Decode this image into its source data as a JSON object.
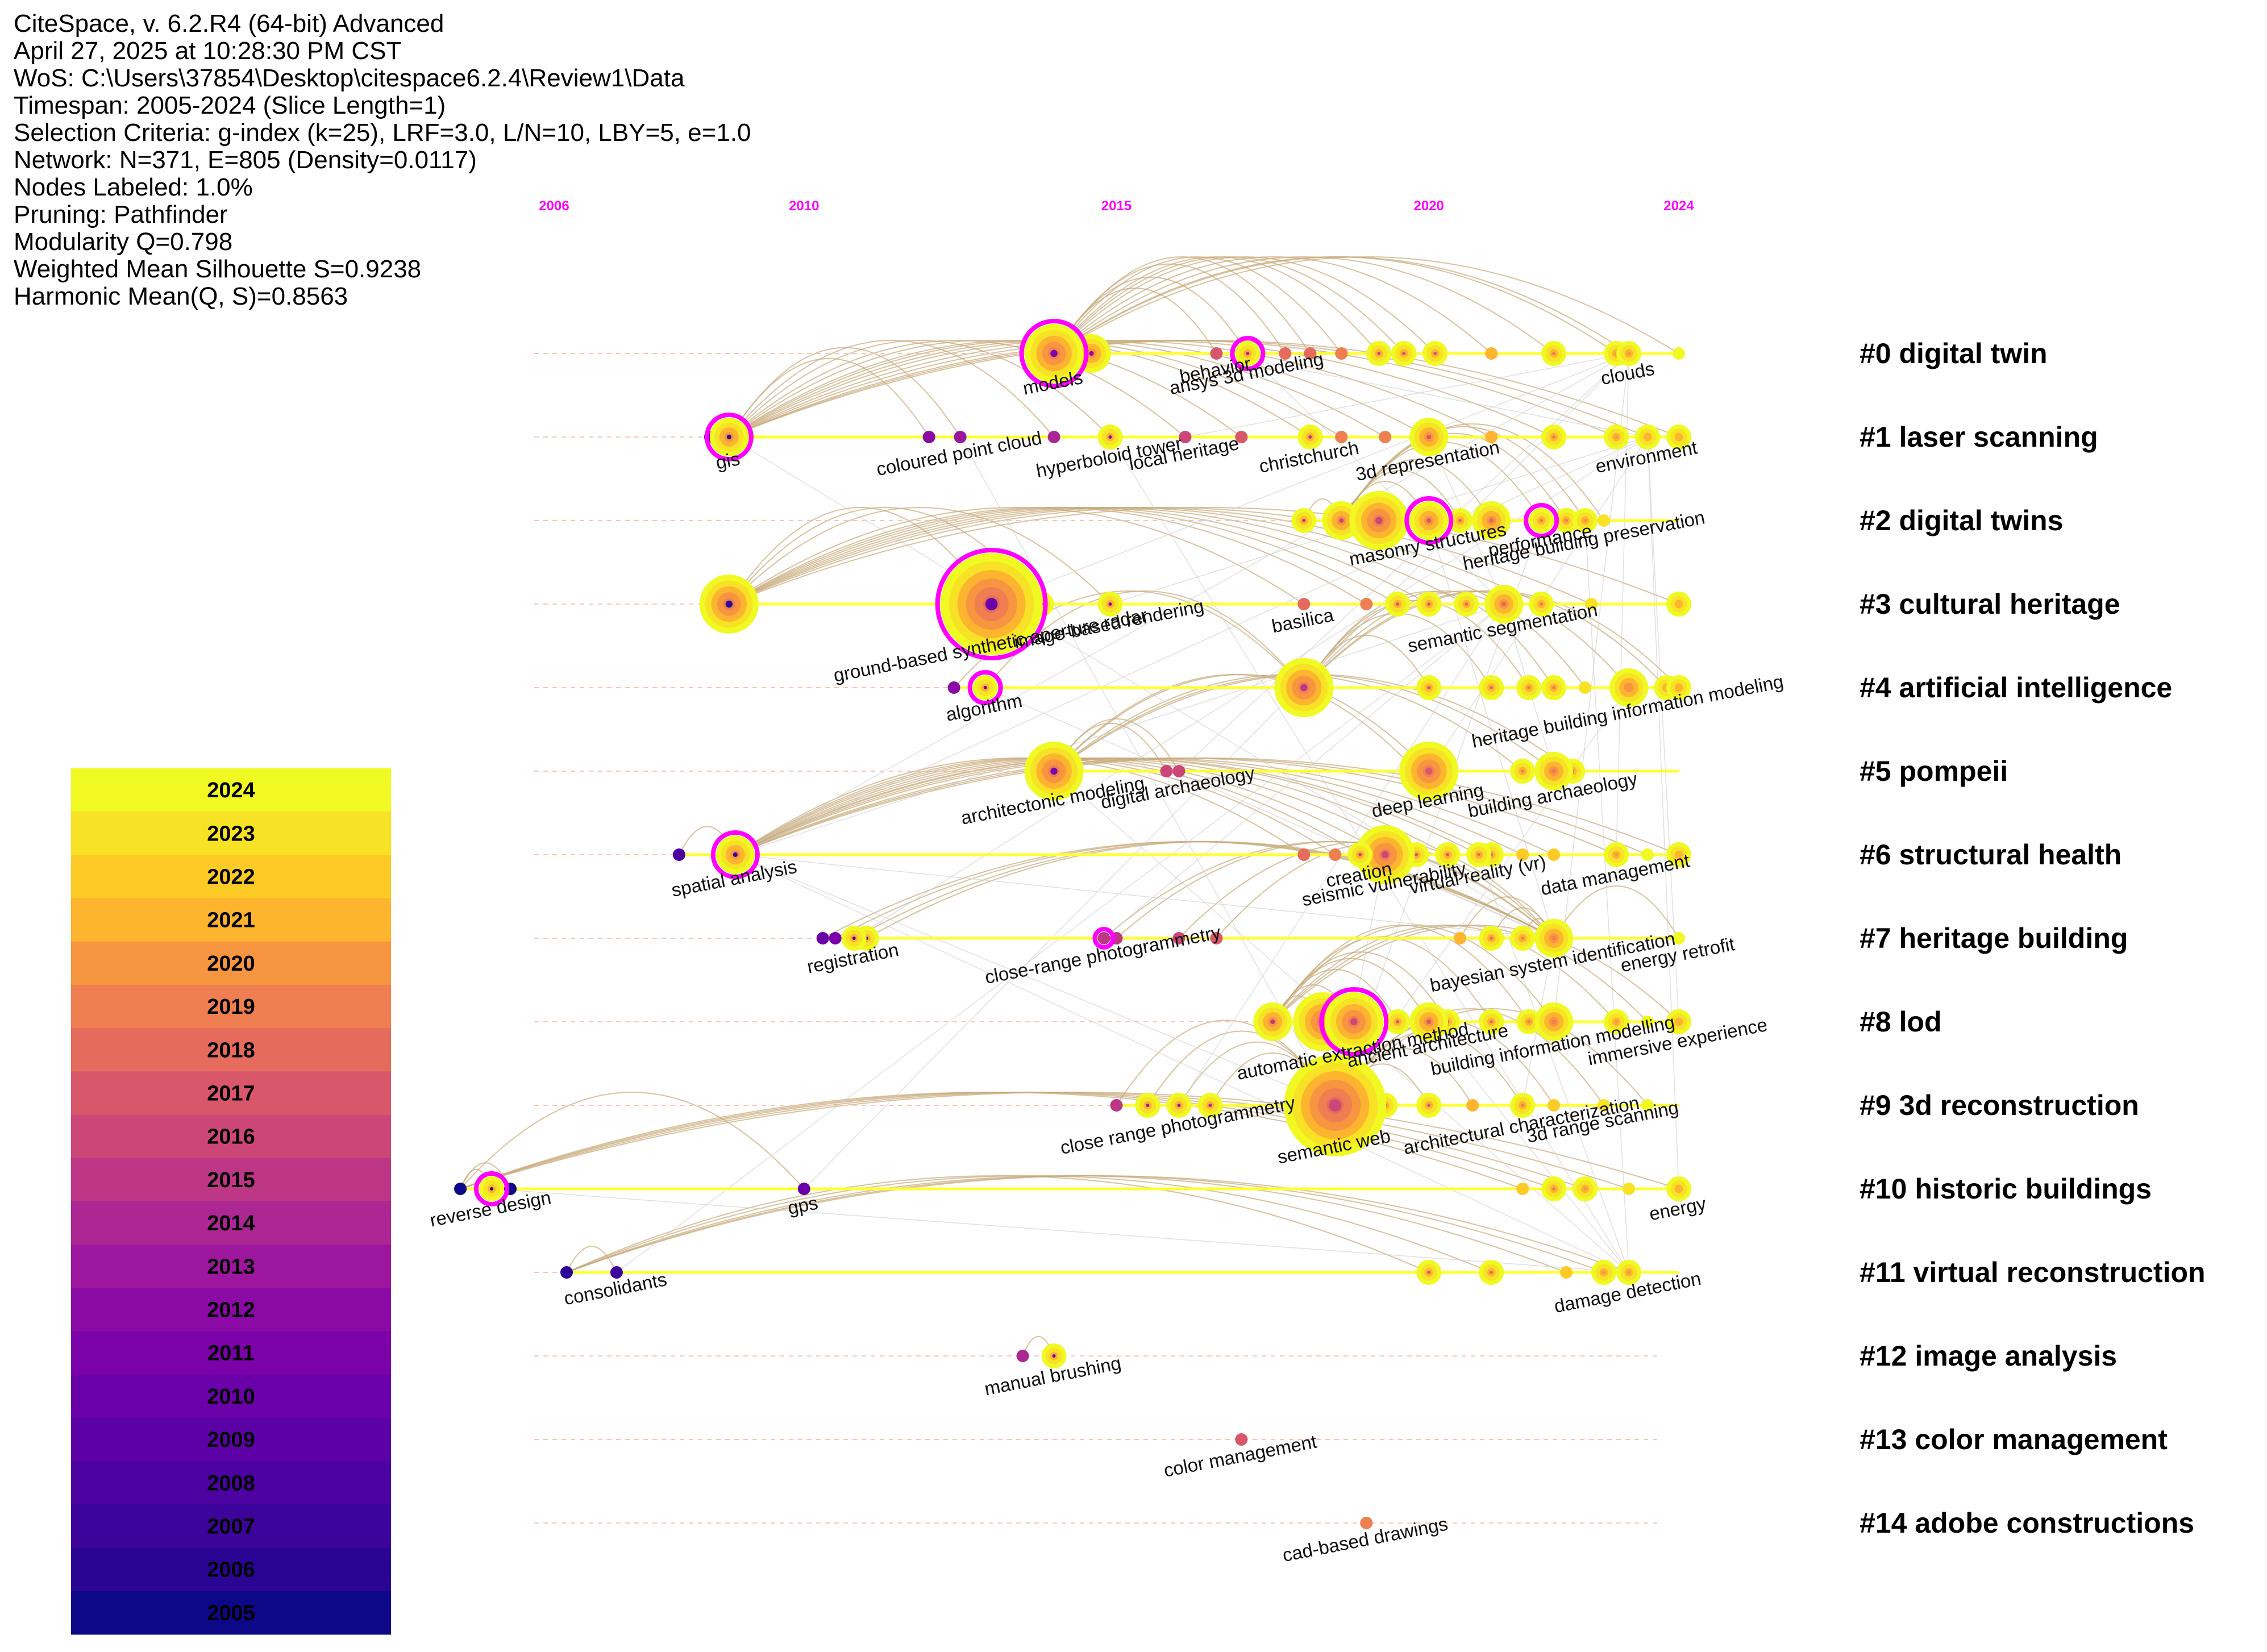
{
  "info": {
    "lines": [
      "CiteSpace, v. 6.2.R4 (64-bit) Advanced",
      "April 27, 2025 at 10:28:30 PM CST",
      "WoS: C:\\Users\\37854\\Desktop\\citespace6.2.4\\Review1\\Data",
      "Timespan: 2005-2024 (Slice Length=1)",
      "Selection Criteria: g-index (k=25), LRF=3.0, L/N=10, LBY=5, e=1.0",
      "Network: N=371, E=805 (Density=0.0117)",
      "Nodes Labeled: 1.0%",
      "Pruning: Pathfinder",
      "Modularity Q=0.798",
      "Weighted Mean Silhouette S=0.9238",
      "Harmonic Mean(Q, S)=0.8563"
    ]
  },
  "chart_data": {
    "type": "scatter",
    "subtype": "timeline",
    "title": "",
    "x_axis_ticks": [
      "2006",
      "2010",
      "2015",
      "2020",
      "2024"
    ],
    "tick_years": [
      2006,
      2010,
      2015,
      2020,
      2024
    ],
    "xlim": [
      2005,
      2024
    ],
    "colors": {
      "tick": "#ff00ff",
      "timeline": "#ffff33",
      "ring": "#ff00ff",
      "edge": "#c8a878",
      "grid": "#cccccc"
    },
    "legend": {
      "placement": "bottom-left",
      "years": [
        {
          "year": "2024",
          "color": "#f0f921"
        },
        {
          "year": "2023",
          "color": "#f7e225"
        },
        {
          "year": "2022",
          "color": "#fdca26"
        },
        {
          "year": "2021",
          "color": "#fdb42f"
        },
        {
          "year": "2020",
          "color": "#f89540"
        },
        {
          "year": "2019",
          "color": "#ef7e50"
        },
        {
          "year": "2018",
          "color": "#e56b5d"
        },
        {
          "year": "2017",
          "color": "#d8576b"
        },
        {
          "year": "2016",
          "color": "#cc4778"
        },
        {
          "year": "2015",
          "color": "#bd3786"
        },
        {
          "year": "2014",
          "color": "#ac2694"
        },
        {
          "year": "2013",
          "color": "#9c179e"
        },
        {
          "year": "2012",
          "color": "#8b0aa5"
        },
        {
          "year": "2011",
          "color": "#7a02a8"
        },
        {
          "year": "2010",
          "color": "#6a00a8"
        },
        {
          "year": "2009",
          "color": "#5c01a6"
        },
        {
          "year": "2008",
          "color": "#4c02a1"
        },
        {
          "year": "2007",
          "color": "#3c049b"
        },
        {
          "year": "2006",
          "color": "#2a0593"
        },
        {
          "year": "2005",
          "color": "#0d0887"
        }
      ]
    },
    "clusters": [
      {
        "id": 0,
        "label": "#0 digital twin",
        "start": 2006,
        "end": 2024
      },
      {
        "id": 1,
        "label": "#1 laser scanning",
        "start": 2006,
        "end": 2024
      },
      {
        "id": 2,
        "label": "#2 digital twins",
        "start": 2006,
        "end": 2024
      },
      {
        "id": 3,
        "label": "#3 cultural heritage",
        "start": 2006,
        "end": 2024
      },
      {
        "id": 4,
        "label": "#4 artificial intelligence",
        "start": 2006,
        "end": 2024
      },
      {
        "id": 5,
        "label": "#5 pompeii",
        "start": 2006,
        "end": 2024
      },
      {
        "id": 6,
        "label": "#6 structural health",
        "start": 2006,
        "end": 2024
      },
      {
        "id": 7,
        "label": "#7 heritage building",
        "start": 2006,
        "end": 2024
      },
      {
        "id": 8,
        "label": "#8 lod",
        "start": 2006,
        "end": 2024
      },
      {
        "id": 9,
        "label": "#9 3d reconstruction",
        "start": 2006,
        "end": 2024
      },
      {
        "id": 10,
        "label": "#10 historic buildings",
        "start": 2006,
        "end": 2024
      },
      {
        "id": 11,
        "label": "#11 virtual reconstruction",
        "start": 2006,
        "end": 2024
      },
      {
        "id": 12,
        "label": "#12 image analysis",
        "start": 2006,
        "end": 2024
      },
      {
        "id": 13,
        "label": "#13 color management",
        "start": 2006,
        "end": 2024
      },
      {
        "id": 14,
        "label": "#14 adobe constructions",
        "start": 2006,
        "end": 2024
      }
    ],
    "keyword_labels": [
      {
        "text": "models",
        "cluster": 0,
        "year": 2014.0,
        "size": 4,
        "ring": true
      },
      {
        "text": "behavior",
        "cluster": 0,
        "year": 2016.6,
        "size": 1,
        "ring": false
      },
      {
        "text": "ansys 3d modeling",
        "cluster": 0,
        "year": 2017.1,
        "size": 2,
        "ring": true
      },
      {
        "text": "clouds",
        "cluster": 0,
        "year": 2023.2,
        "size": 2,
        "ring": false
      },
      {
        "text": "gis",
        "cluster": 1,
        "year": 2008.8,
        "size": 3,
        "ring": true
      },
      {
        "text": "coloured point cloud",
        "cluster": 1,
        "year": 2012.5,
        "size": 1,
        "ring": false
      },
      {
        "text": "hyperboloid tower",
        "cluster": 1,
        "year": 2014.9,
        "size": 2,
        "ring": false
      },
      {
        "text": "local heritage",
        "cluster": 1,
        "year": 2016.1,
        "size": 1,
        "ring": false
      },
      {
        "text": "christchurch",
        "cluster": 1,
        "year": 2018.1,
        "size": 2,
        "ring": false
      },
      {
        "text": "3d representation",
        "cluster": 1,
        "year": 2020.0,
        "size": 3,
        "ring": false
      },
      {
        "text": "environment",
        "cluster": 1,
        "year": 2023.5,
        "size": 2,
        "ring": false
      },
      {
        "text": "masonry structures",
        "cluster": 2,
        "year": 2020.0,
        "size": 3,
        "ring": true
      },
      {
        "text": "performance",
        "cluster": 2,
        "year": 2021.8,
        "size": 2,
        "ring": true
      },
      {
        "text": "heritage building preservation",
        "cluster": 2,
        "year": 2022.5,
        "size": 2,
        "ring": false
      },
      {
        "text": "ground-based synthetic aperture radar",
        "cluster": 3,
        "year": 2013.0,
        "size": 5,
        "ring": true
      },
      {
        "text": "image-based rendering",
        "cluster": 3,
        "year": 2014.9,
        "size": 2,
        "ring": false
      },
      {
        "text": "basilica",
        "cluster": 3,
        "year": 2018.0,
        "size": 1,
        "ring": false
      },
      {
        "text": "semantic segmentation",
        "cluster": 3,
        "year": 2021.2,
        "size": 3,
        "ring": false
      },
      {
        "text": "algorithm",
        "cluster": 4,
        "year": 2012.9,
        "size": 2,
        "ring": true
      },
      {
        "text": "heritage building information modeling",
        "cluster": 4,
        "year": 2023.2,
        "size": 3,
        "ring": false
      },
      {
        "text": "architectonic modeling",
        "cluster": 5,
        "year": 2014.0,
        "size": 4,
        "ring": false
      },
      {
        "text": "digital archaeology",
        "cluster": 5,
        "year": 2016.0,
        "size": 1,
        "ring": false
      },
      {
        "text": "deep learning",
        "cluster": 5,
        "year": 2020.0,
        "size": 4,
        "ring": false
      },
      {
        "text": "building archaeology",
        "cluster": 5,
        "year": 2022.0,
        "size": 3,
        "ring": false
      },
      {
        "text": "spatial analysis",
        "cluster": 6,
        "year": 2008.9,
        "size": 3,
        "ring": true
      },
      {
        "text": "creation",
        "cluster": 6,
        "year": 2018.9,
        "size": 2,
        "ring": false
      },
      {
        "text": "seismic vulnerability",
        "cluster": 6,
        "year": 2019.3,
        "size": 4,
        "ring": false
      },
      {
        "text": "virtual reality (vr)",
        "cluster": 6,
        "year": 2020.8,
        "size": 2,
        "ring": false
      },
      {
        "text": "data management",
        "cluster": 6,
        "year": 2023.0,
        "size": 2,
        "ring": false
      },
      {
        "text": "registration",
        "cluster": 7,
        "year": 2010.8,
        "size": 2,
        "ring": false
      },
      {
        "text": "close-range photogrammetry",
        "cluster": 7,
        "year": 2014.8,
        "size": 1,
        "ring": true
      },
      {
        "text": "bayesian system identification",
        "cluster": 7,
        "year": 2022.0,
        "size": 3,
        "ring": false
      },
      {
        "text": "energy retrofit",
        "cluster": 7,
        "year": 2024.0,
        "size": 1,
        "ring": false
      },
      {
        "text": "automatic extraction method",
        "cluster": 8,
        "year": 2018.8,
        "size": 4,
        "ring": true
      },
      {
        "text": "ancient architecture",
        "cluster": 8,
        "year": 2020.0,
        "size": 3,
        "ring": false
      },
      {
        "text": "building information modelling",
        "cluster": 8,
        "year": 2022.0,
        "size": 3,
        "ring": false
      },
      {
        "text": "immersive experience",
        "cluster": 8,
        "year": 2024.0,
        "size": 2,
        "ring": false
      },
      {
        "text": "close range photogrammetry",
        "cluster": 9,
        "year": 2016.0,
        "size": 2,
        "ring": false
      },
      {
        "text": "semantic web",
        "cluster": 9,
        "year": 2018.5,
        "size": 5,
        "ring": false
      },
      {
        "text": "architectural characterization",
        "cluster": 9,
        "year": 2021.5,
        "size": 2,
        "ring": false
      },
      {
        "text": "3d range scanning",
        "cluster": 9,
        "year": 2022.8,
        "size": 1,
        "ring": false
      },
      {
        "text": "reverse design",
        "cluster": 10,
        "year": 2005.0,
        "size": 2,
        "ring": true
      },
      {
        "text": "gps",
        "cluster": 10,
        "year": 2010.0,
        "size": 1,
        "ring": false
      },
      {
        "text": "energy",
        "cluster": 10,
        "year": 2024.0,
        "size": 2,
        "ring": false
      },
      {
        "text": "consolidants",
        "cluster": 11,
        "year": 2007.0,
        "size": 1,
        "ring": false
      },
      {
        "text": "damage detection",
        "cluster": 11,
        "year": 2023.2,
        "size": 2,
        "ring": false
      },
      {
        "text": "manual brushing",
        "cluster": 12,
        "year": 2014.0,
        "size": 2,
        "ring": false
      },
      {
        "text": "color management",
        "cluster": 13,
        "year": 2017.0,
        "size": 1,
        "ring": false
      },
      {
        "text": "cad-based drawings",
        "cluster": 14,
        "year": 2019.0,
        "size": 1,
        "ring": false
      }
    ],
    "minor_nodes": [
      {
        "cluster": 0,
        "year": 2013.7,
        "size": 1
      },
      {
        "cluster": 0,
        "year": 2014.6,
        "size": 3
      },
      {
        "cluster": 0,
        "year": 2017.7,
        "size": 1
      },
      {
        "cluster": 0,
        "year": 2018.1,
        "size": 1
      },
      {
        "cluster": 0,
        "year": 2018.6,
        "size": 1
      },
      {
        "cluster": 0,
        "year": 2019.2,
        "size": 2
      },
      {
        "cluster": 0,
        "year": 2019.6,
        "size": 2
      },
      {
        "cluster": 0,
        "year": 2020.1,
        "size": 2
      },
      {
        "cluster": 0,
        "year": 2021.0,
        "size": 1
      },
      {
        "cluster": 0,
        "year": 2022.0,
        "size": 2
      },
      {
        "cluster": 0,
        "year": 2023.0,
        "size": 2
      },
      {
        "cluster": 0,
        "year": 2024.0,
        "size": 1
      },
      {
        "cluster": 1,
        "year": 2008.5,
        "size": 1
      },
      {
        "cluster": 1,
        "year": 2009.0,
        "size": 2
      },
      {
        "cluster": 1,
        "year": 2012.0,
        "size": 1
      },
      {
        "cluster": 1,
        "year": 2014.0,
        "size": 1
      },
      {
        "cluster": 1,
        "year": 2017.0,
        "size": 1
      },
      {
        "cluster": 1,
        "year": 2018.6,
        "size": 1
      },
      {
        "cluster": 1,
        "year": 2019.3,
        "size": 1
      },
      {
        "cluster": 1,
        "year": 2021.0,
        "size": 1
      },
      {
        "cluster": 1,
        "year": 2022.0,
        "size": 2
      },
      {
        "cluster": 1,
        "year": 2023.0,
        "size": 2
      },
      {
        "cluster": 1,
        "year": 2024.0,
        "size": 2
      },
      {
        "cluster": 2,
        "year": 2018.0,
        "size": 2
      },
      {
        "cluster": 2,
        "year": 2018.6,
        "size": 3
      },
      {
        "cluster": 2,
        "year": 2019.2,
        "size": 4
      },
      {
        "cluster": 2,
        "year": 2020.5,
        "size": 2
      },
      {
        "cluster": 2,
        "year": 2021.0,
        "size": 3
      },
      {
        "cluster": 2,
        "year": 2022.2,
        "size": 2
      },
      {
        "cluster": 2,
        "year": 2022.8,
        "size": 1
      },
      {
        "cluster": 3,
        "year": 2008.8,
        "size": 4
      },
      {
        "cluster": 3,
        "year": 2013.8,
        "size": 2
      },
      {
        "cluster": 3,
        "year": 2019.0,
        "size": 1
      },
      {
        "cluster": 3,
        "year": 2019.5,
        "size": 2
      },
      {
        "cluster": 3,
        "year": 2020.0,
        "size": 2
      },
      {
        "cluster": 3,
        "year": 2020.6,
        "size": 2
      },
      {
        "cluster": 3,
        "year": 2021.8,
        "size": 2
      },
      {
        "cluster": 3,
        "year": 2022.6,
        "size": 1
      },
      {
        "cluster": 3,
        "year": 2024.0,
        "size": 2
      },
      {
        "cluster": 4,
        "year": 2012.4,
        "size": 1
      },
      {
        "cluster": 4,
        "year": 2018.0,
        "size": 4
      },
      {
        "cluster": 4,
        "year": 2020.0,
        "size": 2
      },
      {
        "cluster": 4,
        "year": 2021.0,
        "size": 2
      },
      {
        "cluster": 4,
        "year": 2021.6,
        "size": 2
      },
      {
        "cluster": 4,
        "year": 2022.0,
        "size": 2
      },
      {
        "cluster": 4,
        "year": 2022.5,
        "size": 1
      },
      {
        "cluster": 4,
        "year": 2023.8,
        "size": 2
      },
      {
        "cluster": 4,
        "year": 2024.0,
        "size": 2
      },
      {
        "cluster": 5,
        "year": 2015.8,
        "size": 1
      },
      {
        "cluster": 5,
        "year": 2019.8,
        "size": 1
      },
      {
        "cluster": 5,
        "year": 2021.5,
        "size": 2
      },
      {
        "cluster": 5,
        "year": 2022.3,
        "size": 2
      },
      {
        "cluster": 6,
        "year": 2008.0,
        "size": 1
      },
      {
        "cluster": 6,
        "year": 2018.0,
        "size": 1
      },
      {
        "cluster": 6,
        "year": 2018.5,
        "size": 1
      },
      {
        "cluster": 6,
        "year": 2019.8,
        "size": 2
      },
      {
        "cluster": 6,
        "year": 2020.3,
        "size": 2
      },
      {
        "cluster": 6,
        "year": 2021.0,
        "size": 2
      },
      {
        "cluster": 6,
        "year": 2021.5,
        "size": 1
      },
      {
        "cluster": 6,
        "year": 2022.0,
        "size": 1
      },
      {
        "cluster": 6,
        "year": 2023.5,
        "size": 1
      },
      {
        "cluster": 6,
        "year": 2024.0,
        "size": 2
      },
      {
        "cluster": 7,
        "year": 2010.3,
        "size": 1
      },
      {
        "cluster": 7,
        "year": 2010.5,
        "size": 1
      },
      {
        "cluster": 7,
        "year": 2011.0,
        "size": 2
      },
      {
        "cluster": 7,
        "year": 2015.0,
        "size": 1
      },
      {
        "cluster": 7,
        "year": 2016.0,
        "size": 1
      },
      {
        "cluster": 7,
        "year": 2016.6,
        "size": 1
      },
      {
        "cluster": 7,
        "year": 2020.5,
        "size": 1
      },
      {
        "cluster": 7,
        "year": 2021.0,
        "size": 2
      },
      {
        "cluster": 7,
        "year": 2021.5,
        "size": 2
      },
      {
        "cluster": 8,
        "year": 2017.5,
        "size": 3
      },
      {
        "cluster": 8,
        "year": 2018.3,
        "size": 4
      },
      {
        "cluster": 8,
        "year": 2019.5,
        "size": 2
      },
      {
        "cluster": 8,
        "year": 2020.3,
        "size": 2
      },
      {
        "cluster": 8,
        "year": 2021.0,
        "size": 2
      },
      {
        "cluster": 8,
        "year": 2021.6,
        "size": 2
      },
      {
        "cluster": 8,
        "year": 2023.0,
        "size": 2
      },
      {
        "cluster": 8,
        "year": 2023.5,
        "size": 1
      },
      {
        "cluster": 9,
        "year": 2015.0,
        "size": 1
      },
      {
        "cluster": 9,
        "year": 2015.5,
        "size": 2
      },
      {
        "cluster": 9,
        "year": 2016.5,
        "size": 2
      },
      {
        "cluster": 9,
        "year": 2019.3,
        "size": 2
      },
      {
        "cluster": 9,
        "year": 2020.0,
        "size": 2
      },
      {
        "cluster": 9,
        "year": 2020.7,
        "size": 1
      },
      {
        "cluster": 9,
        "year": 2022.0,
        "size": 1
      },
      {
        "cluster": 9,
        "year": 2023.5,
        "size": 1
      },
      {
        "cluster": 10,
        "year": 2004.5,
        "size": 1
      },
      {
        "cluster": 10,
        "year": 2005.3,
        "size": 1
      },
      {
        "cluster": 10,
        "year": 2021.5,
        "size": 1
      },
      {
        "cluster": 10,
        "year": 2022.0,
        "size": 2
      },
      {
        "cluster": 10,
        "year": 2022.5,
        "size": 2
      },
      {
        "cluster": 10,
        "year": 2023.2,
        "size": 1
      },
      {
        "cluster": 11,
        "year": 2006.2,
        "size": 1
      },
      {
        "cluster": 11,
        "year": 2020.0,
        "size": 2
      },
      {
        "cluster": 11,
        "year": 2021.0,
        "size": 2
      },
      {
        "cluster": 11,
        "year": 2022.2,
        "size": 1
      },
      {
        "cluster": 11,
        "year": 2022.8,
        "size": 2
      },
      {
        "cluster": 12,
        "year": 2013.5,
        "size": 1
      }
    ]
  }
}
